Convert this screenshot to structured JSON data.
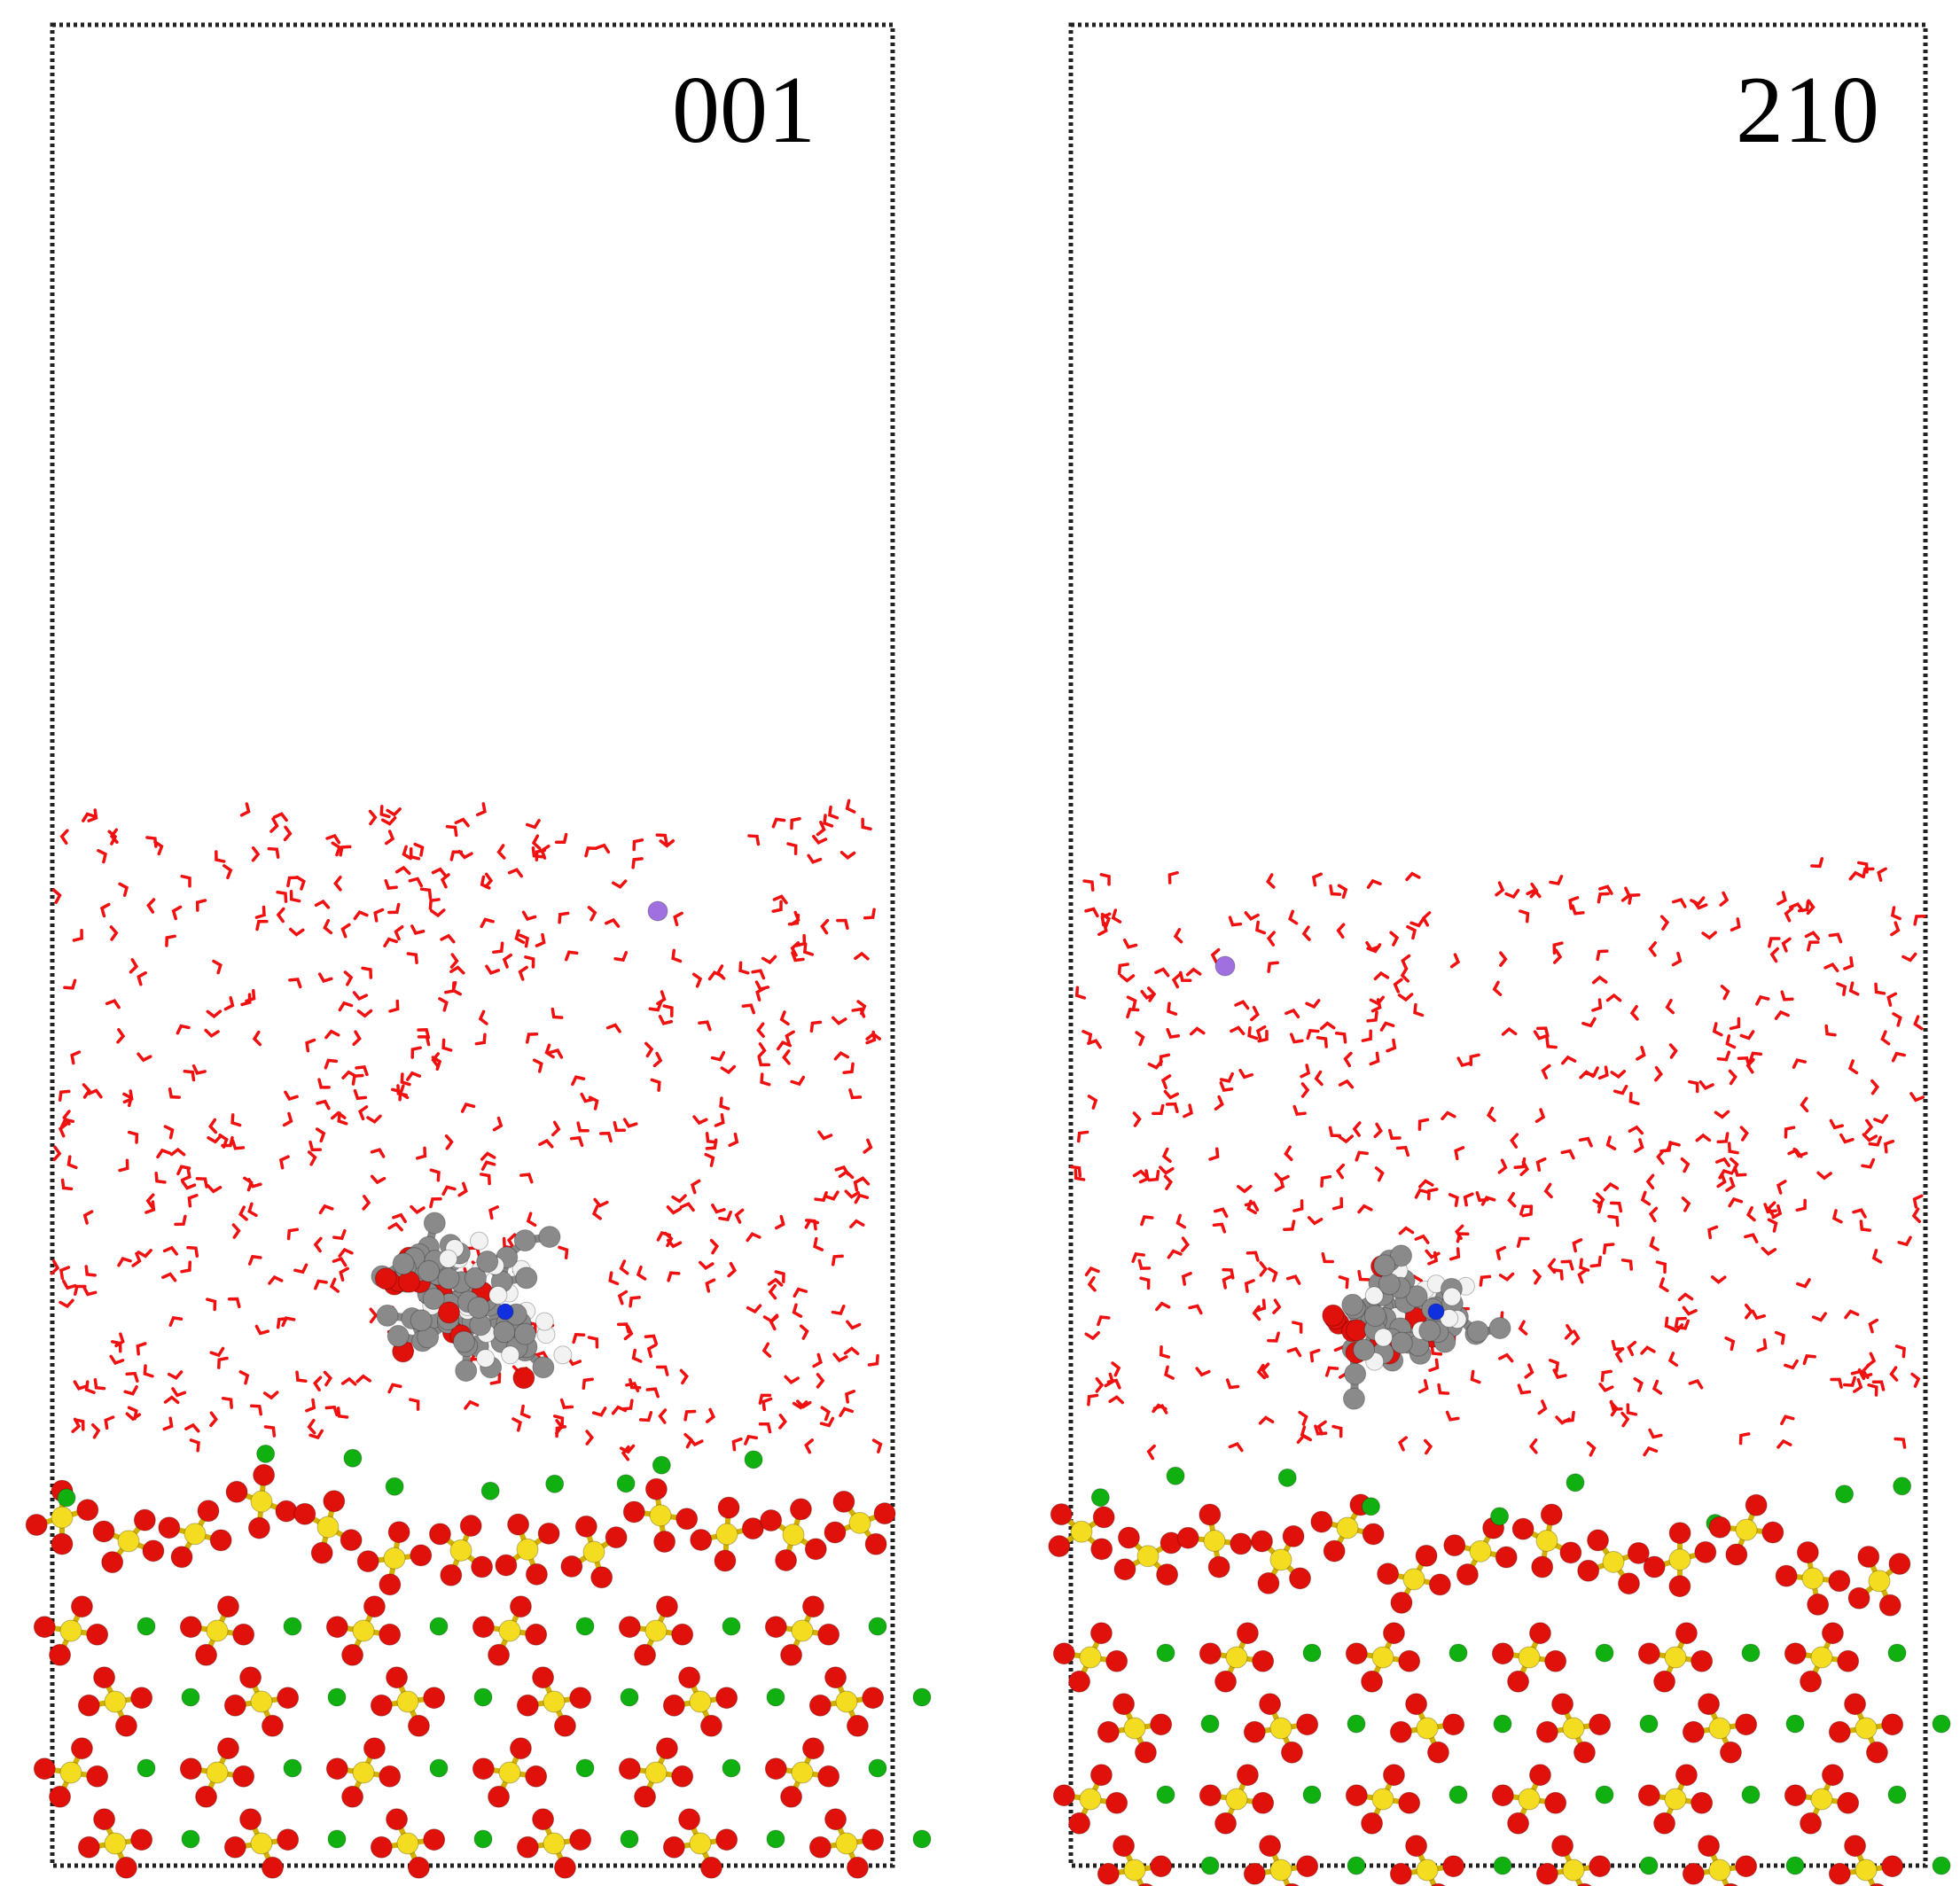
{
  "panels": [
    {
      "label": "001"
    },
    {
      "label": "210"
    }
  ]
}
